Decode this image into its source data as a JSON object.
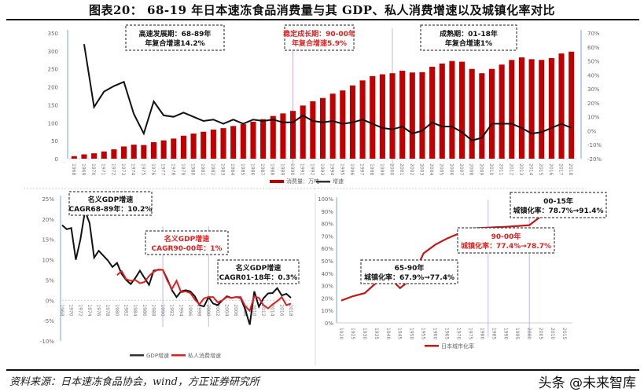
{
  "header": {
    "title": "图表20： 68-19 年日本速冻食品消费量与其 GDP、私人消费增速以及城镇化率对比"
  },
  "footer": {
    "source": "资料来源：日本速冻食品协会，wind，方正证券研究所",
    "watermark": "头条 @未来智库"
  },
  "colors": {
    "bar": "#c00000",
    "line_black": "#111111",
    "line_red": "#e02020",
    "axis_blue": "#6fa8dc",
    "divider": "#b9a3e3"
  },
  "chart_data": [
    {
      "type": "bar+line",
      "title": "",
      "categories": [
        "1968",
        "1969",
        "1970",
        "1971",
        "1972",
        "1973",
        "1974",
        "1975",
        "1976",
        "1977",
        "1978",
        "1979",
        "1980",
        "1981",
        "1982",
        "1983",
        "1984",
        "1985",
        "1986",
        "1987",
        "1988",
        "1989",
        "1990",
        "1991",
        "1992",
        "1993",
        "1994",
        "1995",
        "1996",
        "1997",
        "1998",
        "1999",
        "2000",
        "2001",
        "2002",
        "2003",
        "2004",
        "2005",
        "2006",
        "2007",
        "2008",
        "2009",
        "2010",
        "2011",
        "2012",
        "2013",
        "2014",
        "2015",
        "2016",
        "2017",
        "2018"
      ],
      "series": [
        {
          "name": "消费量：万吨",
          "axis": "left",
          "type": "bar",
          "values": [
            7,
            12,
            15,
            20,
            26,
            34,
            39,
            38,
            46,
            51,
            56,
            64,
            70,
            75,
            81,
            85,
            91,
            96,
            103,
            110,
            119,
            126,
            133,
            148,
            160,
            169,
            181,
            190,
            204,
            218,
            230,
            235,
            238,
            245,
            240,
            241,
            256,
            265,
            272,
            270,
            250,
            238,
            250,
            262,
            275,
            282,
            277,
            275,
            280,
            293,
            298
          ]
        },
        {
          "name": "增速",
          "axis": "right",
          "type": "line",
          "values": [
            null,
            62,
            17,
            28,
            32,
            35,
            12,
            -2,
            21,
            11,
            10,
            13,
            10,
            7,
            8,
            5,
            8,
            5,
            8,
            7,
            8,
            6,
            6,
            11,
            7,
            6,
            7,
            5,
            6,
            8,
            5,
            2,
            1,
            3,
            -2,
            0,
            6,
            3,
            3,
            -1,
            -7,
            -5,
            5,
            5,
            5,
            2,
            -2,
            -1,
            2,
            5,
            2
          ]
        }
      ],
      "left_ticks": [
        "0",
        "50",
        "100",
        "150",
        "200",
        "250",
        "300",
        "350"
      ],
      "right_ticks": [
        "-20%",
        "-10%",
        "0%",
        "10%",
        "20%",
        "30%",
        "40%",
        "50%",
        "60%",
        "70%"
      ],
      "ylim_left": [
        0,
        350
      ],
      "ylim_right": [
        -20,
        70
      ],
      "legend": [
        "消费量：万吨",
        "增速"
      ],
      "legend_position": "bottom",
      "annotations": [
        {
          "line1": "高速发展期：68-89年",
          "line2": "年复合增速14.2%",
          "color": "#111111"
        },
        {
          "line1": "稳定成长期：90-00年",
          "line2": "年复合增速5.9%",
          "color": "#e02020"
        },
        {
          "line1": "成熟期：01-18年",
          "line2": "年复合增速1%",
          "color": "#111111"
        }
      ]
    },
    {
      "type": "line",
      "categories": [
        "1968",
        "1969",
        "1970",
        "1971",
        "1972",
        "1973",
        "1974",
        "1975",
        "1976",
        "1977",
        "1978",
        "1979",
        "1980",
        "1981",
        "1982",
        "1983",
        "1984",
        "1985",
        "1986",
        "1987",
        "1988",
        "1989",
        "1990",
        "1991",
        "1992",
        "1993",
        "1994",
        "1995",
        "1996",
        "1997",
        "1998",
        "1999",
        "2000",
        "2001",
        "2002",
        "2003",
        "2004",
        "2005",
        "2006",
        "2007",
        "2008",
        "2009",
        "2010",
        "2011",
        "2012",
        "2013",
        "2014",
        "2015",
        "2016",
        "2017",
        "2018"
      ],
      "x_tick_labels": [
        "1968",
        "1970",
        "1972",
        "1974",
        "1976",
        "1978",
        "1980",
        "1982",
        "1984",
        "1986",
        "1988",
        "1990",
        "1992",
        "1994",
        "1996",
        "1998",
        "2000",
        "2002",
        "2004",
        "2006",
        "2008",
        "2010",
        "2012",
        "2014",
        "2016",
        "2018"
      ],
      "series": [
        {
          "name": "GDP增速",
          "values": [
            18.5,
            17.5,
            17.8,
            10,
            15,
            22,
            19,
            10.5,
            12.2,
            11,
            9.8,
            8.2,
            9.2,
            6.5,
            5,
            4,
            5.5,
            7.3,
            5.5,
            3.8,
            7.3,
            7.5,
            7.5,
            5.2,
            2.5,
            0.8,
            2.2,
            2.5,
            2.2,
            1,
            -1.2,
            -1.5,
            0.8,
            -0.8,
            -1.2,
            0,
            1,
            0.6,
            0.8,
            0.6,
            -2.2,
            -6,
            2.2,
            -1.6,
            0.5,
            1.7,
            1.8,
            3,
            1.2,
            1.6,
            0.6
          ]
        },
        {
          "name": "私人消费增速",
          "values": [
            null,
            null,
            null,
            null,
            null,
            null,
            null,
            null,
            null,
            null,
            null,
            null,
            6.2,
            7.2,
            5.2,
            4.8,
            5,
            4.2,
            4.5,
            6,
            7,
            7.6,
            7.5,
            4.8,
            2.8,
            4.8,
            2,
            2.2,
            1.8,
            0.2,
            -1,
            0.5,
            0.8,
            0.8,
            -0.5,
            0,
            0.8,
            0.6,
            0.8,
            0.8,
            -1.4,
            -2.6,
            1,
            0.6,
            -1.2,
            -2,
            -1,
            -0.2,
            0.8,
            -1.2,
            -0.8
          ]
        }
      ],
      "y_ticks": [
        "-10%",
        "-5%",
        "0%",
        "5%",
        "10%",
        "15%",
        "20%",
        "25%"
      ],
      "ylim": [
        -10,
        25
      ],
      "legend": [
        "GDP增速",
        "私人消费增速"
      ],
      "legend_position": "bottom",
      "annotations": [
        {
          "line1": "名义GDP增速",
          "line2": "CAGR68-89年：10.2%",
          "color": "#111111"
        },
        {
          "line1": "名义GDP增速",
          "line2": "CAGR90-00年：1%",
          "color": "#e02020"
        },
        {
          "line1": "名义GDP增速",
          "line2": "CAGR01-18年：0.3%",
          "color": "#111111"
        }
      ]
    },
    {
      "type": "line",
      "categories": [
        "1920",
        "1925",
        "1930",
        "1935",
        "1940",
        "1945",
        "1950",
        "1955",
        "1960",
        "1965",
        "1970",
        "1975",
        "1980",
        "1985",
        "1990",
        "1995",
        "2000",
        "2005",
        "2010",
        "2015"
      ],
      "series": [
        {
          "name": "日本城市化率",
          "values": [
            18,
            21.5,
            24,
            32.5,
            37.5,
            28,
            35.5,
            56,
            63,
            68,
            72,
            76,
            76.5,
            77,
            77.4,
            78,
            78.7,
            86,
            91,
            91.4
          ]
        }
      ],
      "y_ticks": [
        "0%",
        "10%",
        "20%",
        "30%",
        "40%",
        "50%",
        "60%",
        "70%",
        "80%",
        "90%",
        "100%"
      ],
      "ylim": [
        0,
        100
      ],
      "legend": [
        "日本城市化率"
      ],
      "legend_position": "bottom",
      "annotations": [
        {
          "line1": "65-90年",
          "line2": "城镇化率：67.9%→77.4%",
          "color": "#111111"
        },
        {
          "line1": "90-00年",
          "line2": "城镇化率：77.4%→78.7%",
          "color": "#e02020"
        },
        {
          "line1": "00-15年",
          "line2": "城镇化率：78.7%→91.4%",
          "color": "#111111"
        }
      ]
    }
  ]
}
